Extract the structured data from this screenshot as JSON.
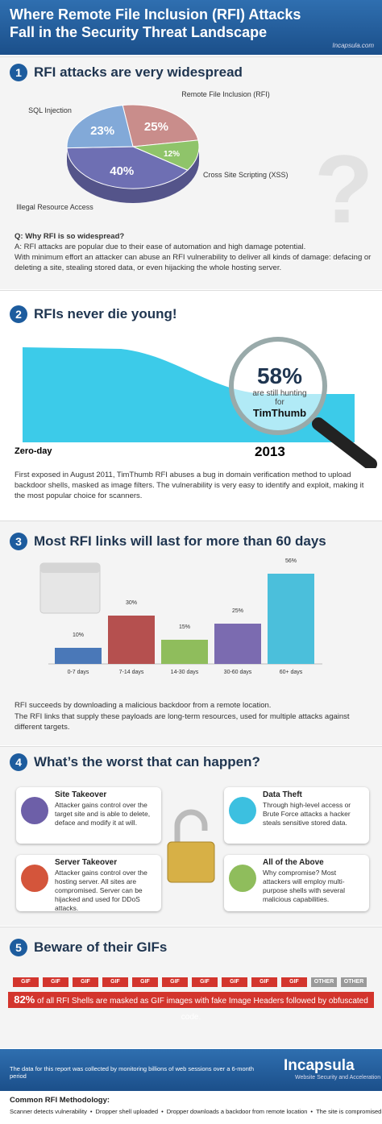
{
  "header": {
    "title_lines": [
      "Where Remote File Inclusion (RFI) Attacks",
      "Fall in the Security Threat Landscape"
    ],
    "site": "Incapsula.com"
  },
  "s1": {
    "number": "1",
    "heading": "RFI attacks are very widespread",
    "chart_data": {
      "type": "pie",
      "categories": [
        "Remote File Inclusion (RFI)",
        "Cross Site Scripting (XSS)",
        "Illegal Resource Access",
        "SQL Injection"
      ],
      "values": [
        25,
        12,
        40,
        23
      ],
      "value_labels": [
        "25%",
        "12%",
        "40%",
        "23%"
      ],
      "colors": [
        "#c98d8b",
        "#8fc46a",
        "#6e6fb3",
        "#82a9d8"
      ]
    },
    "question": "Q: Why RFI is so widespread?",
    "answer": "A: RFI attacks are popular due to their ease of automation and high damage potential.",
    "detail": "With minimum effort an attacker can abuse an RFI vulnerability to deliver all kinds of damage: defacing or deleting a site, stealing stored data, or even hijacking the whole hosting server."
  },
  "s2": {
    "number": "2",
    "heading": "RFIs never die young!",
    "start_label": "Zero-day",
    "end_label": "2013",
    "stat": "58%",
    "stat_text": "are still hunting for",
    "stat_target": "TimThumb",
    "body": "First exposed in August 2011, TimThumb RFI abuses a bug in domain verification method to upload backdoor shells, masked as image filters. The vulnerability is very easy to identify and exploit, making it the most popular choice for scanners."
  },
  "s3": {
    "number": "3",
    "heading": "Most RFI links will last for more than 60 days",
    "chart_data": {
      "type": "bar",
      "categories": [
        "0-7 days",
        "7-14 days",
        "14-30 days",
        "30-60 days",
        "60+ days"
      ],
      "values": [
        10,
        30,
        15,
        25,
        56
      ],
      "value_labels": [
        "10%",
        "30%",
        "15%",
        "25%",
        "56%"
      ],
      "colors": [
        "#4a78b8",
        "#b5504f",
        "#8fbd5c",
        "#7b6bb0",
        "#4bbfdb"
      ]
    },
    "body_lines": [
      "RFI succeeds by downloading a malicious backdoor from a remote location.",
      "The RFI links that supply these payloads are long-term resources, used for multiple attacks against different targets."
    ]
  },
  "s4": {
    "number": "4",
    "heading": "What’s the worst that can happen?",
    "items": [
      {
        "title": "Site Takeover",
        "text": "Attacker gains control over the target site and is able to delete, deface and modify it at will."
      },
      {
        "title": "Data Theft",
        "text": "Through high-level access or Brute Force attacks a hacker steals sensitive stored data."
      },
      {
        "title": "Server Takeover",
        "text": "Attacker gains control over the hosting server. All sites are compromised. Server can be hijacked and used for DDoS attacks."
      },
      {
        "title": "All of the Above",
        "text": "Why compromise? Most attackers will employ multi-purpose shells with several malicious capabilities."
      }
    ]
  },
  "s5": {
    "number": "5",
    "heading": "Beware of their GIFs",
    "tags": [
      "GIF",
      "GIF",
      "GIF",
      "GIF",
      "GIF",
      "GIF",
      "GIF",
      "GIF",
      "GIF",
      "GIF",
      "OTHER",
      "OTHER"
    ],
    "stat": "82%",
    "stat_text": "of all RFI Shells are masked as GIF images with fake Image Headers followed by obfuscated code."
  },
  "footer": {
    "note": "The data for this report was collected by monitoring billions of web sessions over a 6-month period",
    "brand": "Incapsula",
    "tagline": "Website Security and Acceleration",
    "method_title": "Common RFI Methodology:",
    "steps": [
      "Scanner detects vulnerability",
      "Dropper shell uploaded",
      "Dropper downloads a backdoor from remote location",
      "The site is compromised"
    ]
  }
}
